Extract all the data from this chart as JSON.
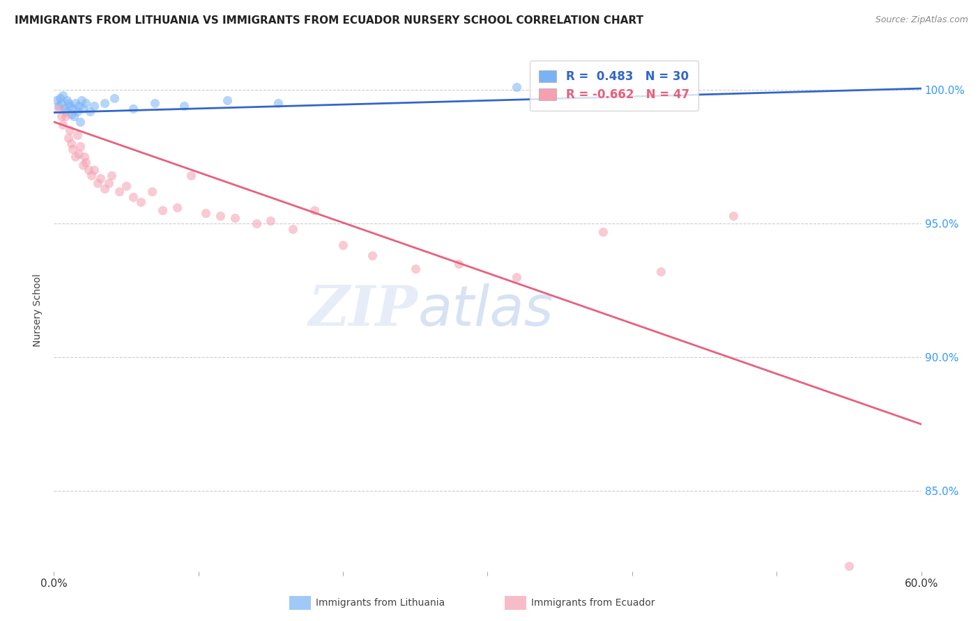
{
  "title": "IMMIGRANTS FROM LITHUANIA VS IMMIGRANTS FROM ECUADOR NURSERY SCHOOL CORRELATION CHART",
  "source": "Source: ZipAtlas.com",
  "ylabel": "Nursery School",
  "xmin": 0.0,
  "xmax": 60.0,
  "ymin": 82.0,
  "ymax": 101.5,
  "yticks": [
    85.0,
    90.0,
    95.0,
    100.0
  ],
  "ytick_labels": [
    "85.0%",
    "90.0%",
    "95.0%",
    "100.0%"
  ],
  "background_color": "#ffffff",
  "grid_color": "#cccccc",
  "title_color": "#222222",
  "source_color": "#888888",
  "blue_color": "#7ab3f5",
  "blue_line_color": "#3366cc",
  "pink_color": "#f5a0b0",
  "pink_line_color": "#e8607a",
  "legend_R_blue": " 0.483",
  "legend_N_blue": "30",
  "legend_R_pink": "-0.662",
  "legend_N_pink": "47",
  "right_axis_color": "#3399ff",
  "blue_scatter_x": [
    0.2,
    0.3,
    0.4,
    0.5,
    0.6,
    0.7,
    0.8,
    0.9,
    1.0,
    1.1,
    1.2,
    1.3,
    1.4,
    1.5,
    1.6,
    1.7,
    1.8,
    1.9,
    2.0,
    2.2,
    2.5,
    2.8,
    3.5,
    4.2,
    5.5,
    7.0,
    9.0,
    12.0,
    15.5,
    32.0
  ],
  "blue_scatter_y": [
    99.6,
    99.4,
    99.7,
    99.5,
    99.8,
    99.3,
    99.2,
    99.6,
    99.5,
    99.4,
    99.1,
    99.3,
    99.0,
    99.5,
    99.2,
    99.4,
    98.8,
    99.6,
    99.3,
    99.5,
    99.2,
    99.4,
    99.5,
    99.7,
    99.3,
    99.5,
    99.4,
    99.6,
    99.5,
    100.1
  ],
  "pink_scatter_x": [
    0.3,
    0.5,
    0.6,
    0.8,
    1.0,
    1.1,
    1.2,
    1.3,
    1.5,
    1.6,
    1.7,
    1.8,
    2.0,
    2.1,
    2.2,
    2.4,
    2.6,
    2.8,
    3.0,
    3.2,
    3.5,
    3.8,
    4.0,
    4.5,
    5.0,
    5.5,
    6.0,
    6.8,
    7.5,
    8.5,
    9.5,
    10.5,
    11.5,
    12.5,
    14.0,
    15.0,
    16.5,
    18.0,
    20.0,
    22.0,
    25.0,
    28.0,
    32.0,
    38.0,
    42.0,
    47.0,
    55.0
  ],
  "pink_scatter_y": [
    99.3,
    99.0,
    98.7,
    99.0,
    98.2,
    98.5,
    98.0,
    97.8,
    97.5,
    98.3,
    97.6,
    97.9,
    97.2,
    97.5,
    97.3,
    97.0,
    96.8,
    97.0,
    96.5,
    96.7,
    96.3,
    96.5,
    96.8,
    96.2,
    96.4,
    96.0,
    95.8,
    96.2,
    95.5,
    95.6,
    96.8,
    95.4,
    95.3,
    95.2,
    95.0,
    95.1,
    94.8,
    95.5,
    94.2,
    93.8,
    93.3,
    93.5,
    93.0,
    94.7,
    93.2,
    95.3,
    82.2
  ],
  "blue_trendline_x": [
    0.0,
    60.0
  ],
  "blue_trendline_y": [
    99.15,
    100.05
  ],
  "pink_trendline_x": [
    0.0,
    60.0
  ],
  "pink_trendline_y": [
    98.8,
    87.5
  ]
}
